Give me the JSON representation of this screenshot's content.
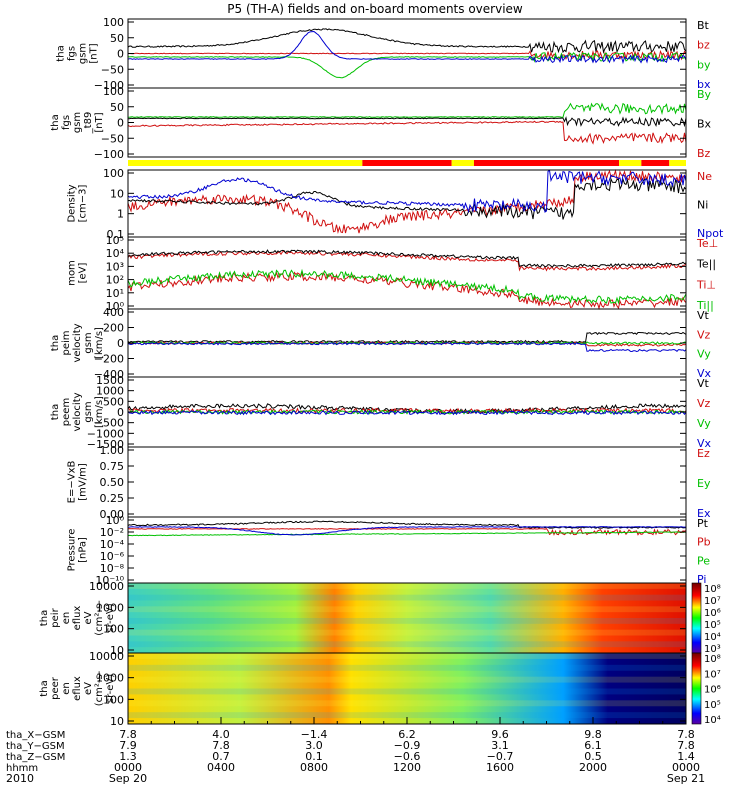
{
  "chart_data": {
    "type": "line",
    "title": "P5 (TH-A) fields and on-board moments overview",
    "panels": [
      {
        "ylabel": [
          "tha",
          "fgs",
          "gsm",
          "[nT]"
        ],
        "ticks": [
          "100",
          "50",
          "0",
          "−50",
          "−100"
        ],
        "ylim": [
          -100,
          100
        ],
        "series": [
          {
            "name": "Bt",
            "color": "#000000"
          },
          {
            "name": "bz",
            "color": "#d01010"
          },
          {
            "name": "by",
            "color": "#00c000"
          },
          {
            "name": "bx",
            "color": "#0000d0"
          }
        ]
      },
      {
        "ylabel": [
          "tha",
          "fgs",
          "gsm",
          "_t89",
          "[nT]"
        ],
        "ticks": [
          "100",
          "50",
          "0",
          "−50",
          "−100"
        ],
        "ylim": [
          -120,
          100
        ],
        "series": [
          {
            "name": "By",
            "color": "#00c000"
          },
          {
            "name": "Bx",
            "color": "#000000"
          },
          {
            "name": "Bz",
            "color": "#d01010"
          }
        ]
      },
      {
        "ylabel": [
          "Density",
          "[cm−3]"
        ],
        "ticks": [
          "100",
          "10",
          "1",
          "0.1"
        ],
        "scale": "log",
        "series": [
          {
            "name": "Ne",
            "color": "#d01010"
          },
          {
            "name": "Ni",
            "color": "#000000"
          },
          {
            "name": "Npot",
            "color": "#0000d0"
          }
        ]
      },
      {
        "ylabel": [
          "mom",
          "[eV]"
        ],
        "ticks": [
          "10⁵",
          "10⁴",
          "10³",
          "10²",
          "10¹",
          "10⁰"
        ],
        "scale": "log",
        "series": [
          {
            "name": "Te⊥",
            "color": "#d01010"
          },
          {
            "name": "Te||",
            "color": "#000000"
          },
          {
            "name": "Ti⊥",
            "color": "#d01010"
          },
          {
            "name": "Ti||",
            "color": "#00c000"
          }
        ]
      },
      {
        "ylabel": [
          "tha",
          "peim",
          "velocity",
          "gsm",
          "[km/s]"
        ],
        "ticks": [
          "400",
          "200",
          "0",
          "−200",
          "−400"
        ],
        "ylim": [
          -400,
          400
        ],
        "series": [
          {
            "name": "Vt",
            "color": "#000000"
          },
          {
            "name": "Vz",
            "color": "#d01010"
          },
          {
            "name": "Vy",
            "color": "#00c000"
          },
          {
            "name": "Vx",
            "color": "#0000d0"
          }
        ]
      },
      {
        "ylabel": [
          "tha",
          "peem",
          "velocity",
          "gsm",
          "[km/s]"
        ],
        "ticks": [
          "1500",
          "1000",
          "500",
          "0",
          "−500",
          "−1000",
          "−1500"
        ],
        "ylim": [
          -1500,
          1500
        ],
        "series": [
          {
            "name": "Vt",
            "color": "#000000"
          },
          {
            "name": "Vz",
            "color": "#d01010"
          },
          {
            "name": "Vy",
            "color": "#00c000"
          },
          {
            "name": "Vx",
            "color": "#0000d0"
          }
        ]
      },
      {
        "ylabel": [
          "E=−VxB",
          "[mV/m]"
        ],
        "ticks": [
          "1.00",
          "0.75",
          "0.50",
          "0.25",
          "0.00"
        ],
        "ylim": [
          0,
          1
        ],
        "series": [
          {
            "name": "Ez",
            "color": "#d01010"
          },
          {
            "name": "Ey",
            "color": "#00c000"
          },
          {
            "name": "Ex",
            "color": "#0000d0"
          }
        ]
      },
      {
        "ylabel": [
          "Pressure",
          "[nPa]"
        ],
        "ticks": [
          "10⁰",
          "10⁻²",
          "10⁻⁴",
          "10⁻⁶",
          "10⁻⁸",
          "10⁻¹⁰"
        ],
        "scale": "log",
        "series": [
          {
            "name": "Pt",
            "color": "#000000"
          },
          {
            "name": "Pb",
            "color": "#d01010"
          },
          {
            "name": "Pe",
            "color": "#00c000"
          },
          {
            "name": "Pi",
            "color": "#0000d0"
          }
        ]
      },
      {
        "type": "heatmap",
        "ylabel": [
          "tha",
          "peir",
          "en",
          "eflux",
          "eV",
          "(cm²-s-",
          "sr-eV)"
        ],
        "ticks": [
          "10000",
          "1000",
          "100",
          "10"
        ],
        "colorbar": [
          "10⁸",
          "10⁷",
          "10⁶",
          "10⁵",
          "10⁴",
          "10³"
        ]
      },
      {
        "type": "heatmap",
        "ylabel": [
          "tha",
          "peer",
          "en",
          "eflux",
          "eV",
          "(cm²-s-",
          "sr-eV)"
        ],
        "ticks": [
          "10000",
          "1000",
          "100",
          "10"
        ],
        "colorbar": [
          "10⁸",
          "10⁷",
          "10⁶",
          "10⁵",
          "10⁴"
        ]
      }
    ],
    "x_axis": {
      "rows": [
        {
          "label": "tha_X−GSM",
          "values": [
            "7.8",
            "4.0",
            "−1.4",
            "6.2",
            "9.6",
            "9.8",
            "7.8"
          ]
        },
        {
          "label": "tha_Y−GSM",
          "values": [
            "7.9",
            "7.8",
            "3.0",
            "−0.9",
            "3.1",
            "6.1",
            "7.8"
          ]
        },
        {
          "label": "tha_Z−GSM",
          "values": [
            "1.3",
            "0.7",
            "0.1",
            "−0.6",
            "−0.7",
            "0.5",
            "1.4"
          ]
        },
        {
          "label": "hhmm",
          "values": [
            "0000",
            "0400",
            "0800",
            "1200",
            "1600",
            "2000",
            "0000"
          ]
        }
      ],
      "year": "2010",
      "start_label": "Sep 20",
      "end_label": "Sep 21"
    }
  }
}
